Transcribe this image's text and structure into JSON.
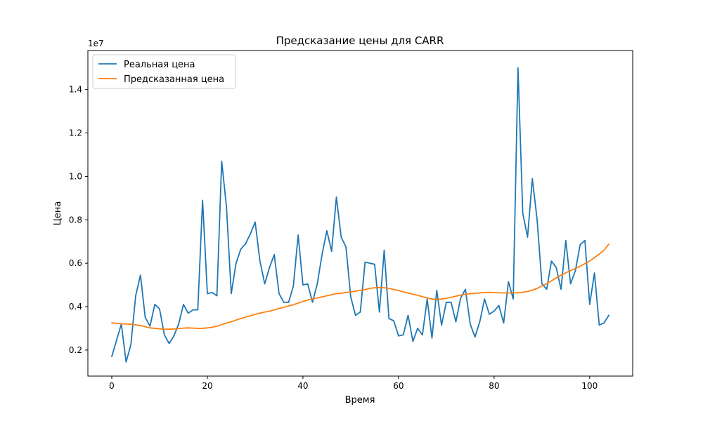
{
  "chart_data": {
    "type": "line",
    "title": "Предсказание цены для CARR",
    "xlabel": "Время",
    "ylabel": "Цена",
    "y_scale_label": "1e7",
    "xlim": [
      -5,
      109
    ],
    "ylim": [
      800000,
      15800000
    ],
    "x_ticks": [
      0,
      20,
      40,
      60,
      80,
      100
    ],
    "x_tick_labels": [
      "0",
      "20",
      "40",
      "60",
      "80",
      "100"
    ],
    "y_ticks": [
      2000000,
      4000000,
      6000000,
      8000000,
      10000000,
      12000000,
      14000000
    ],
    "y_tick_labels": [
      "0.2",
      "0.4",
      "0.6",
      "0.8",
      "1.0",
      "1.2",
      "1.4"
    ],
    "grid": false,
    "legend_position": "top-left",
    "series": [
      {
        "name": "Реальная цена",
        "color": "#1f77b4",
        "values": [
          1700000,
          2450000,
          3200000,
          1450000,
          2250000,
          4500000,
          5450000,
          3500000,
          3100000,
          4100000,
          3900000,
          2700000,
          2300000,
          2650000,
          3200000,
          4100000,
          3700000,
          3850000,
          3850000,
          8900000,
          4600000,
          4650000,
          4500000,
          10700000,
          8600000,
          4600000,
          6000000,
          6650000,
          6900000,
          7350000,
          7900000,
          6100000,
          5050000,
          5800000,
          6400000,
          4600000,
          4200000,
          4200000,
          4950000,
          7300000,
          5000000,
          5050000,
          4200000,
          5050000,
          6400000,
          7500000,
          6550000,
          9050000,
          7200000,
          6750000,
          4450000,
          3600000,
          3750000,
          6050000,
          6000000,
          5950000,
          3750000,
          6600000,
          3450000,
          3350000,
          2650000,
          2700000,
          3600000,
          2400000,
          3000000,
          2700000,
          4350000,
          2550000,
          4750000,
          3150000,
          4200000,
          4200000,
          3300000,
          4400000,
          4800000,
          3200000,
          2600000,
          3300000,
          4350000,
          3650000,
          3800000,
          4050000,
          3250000,
          5150000,
          4350000,
          15000000,
          8300000,
          7200000,
          9900000,
          8000000,
          5050000,
          4800000,
          6100000,
          5800000,
          4800000,
          7050000,
          5050000,
          5650000,
          6850000,
          7050000,
          4100000,
          5550000,
          3150000,
          3250000,
          3600000
        ]
      },
      {
        "name": "Предсказанная цена",
        "color": "#ff7f0e",
        "values": [
          3250000,
          3230000,
          3210000,
          3200000,
          3190000,
          3160000,
          3130000,
          3080000,
          3020000,
          3000000,
          2980000,
          2960000,
          2960000,
          2970000,
          2990000,
          3010000,
          3020000,
          3010000,
          3000000,
          3000000,
          3020000,
          3050000,
          3100000,
          3170000,
          3240000,
          3300000,
          3380000,
          3450000,
          3520000,
          3580000,
          3640000,
          3700000,
          3750000,
          3790000,
          3850000,
          3910000,
          3970000,
          4030000,
          4090000,
          4160000,
          4240000,
          4300000,
          4360000,
          4400000,
          4450000,
          4500000,
          4550000,
          4600000,
          4620000,
          4650000,
          4680000,
          4710000,
          4750000,
          4790000,
          4840000,
          4870000,
          4880000,
          4870000,
          4840000,
          4790000,
          4740000,
          4680000,
          4630000,
          4570000,
          4520000,
          4460000,
          4400000,
          4350000,
          4330000,
          4350000,
          4380000,
          4430000,
          4480000,
          4530000,
          4570000,
          4600000,
          4610000,
          4630000,
          4650000,
          4660000,
          4650000,
          4640000,
          4630000,
          4630000,
          4630000,
          4640000,
          4660000,
          4700000,
          4760000,
          4840000,
          4950000,
          5060000,
          5190000,
          5320000,
          5450000,
          5560000,
          5660000,
          5760000,
          5860000,
          5980000,
          6100000,
          6260000,
          6420000,
          6600000,
          6880000
        ]
      }
    ]
  }
}
